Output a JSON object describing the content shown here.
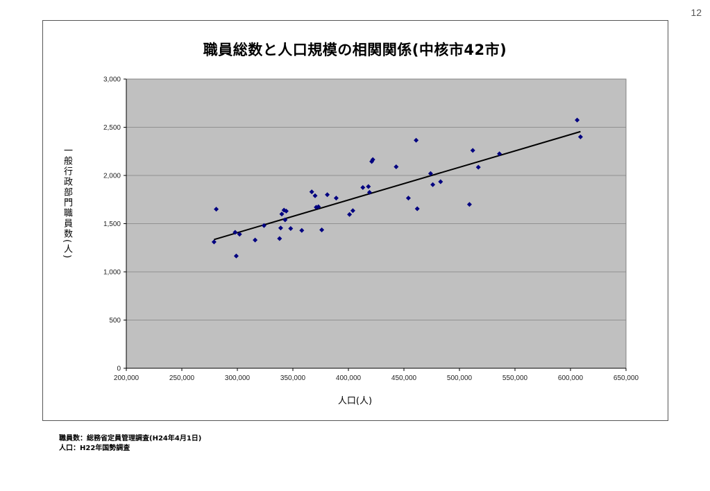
{
  "page_number": "12",
  "sources": {
    "staff": "職員数：総務省定員管理調査(H24年4月1日)",
    "population": "人口：H22年国勢調査"
  },
  "colors": {
    "plot_bg": "#c0c0c0",
    "point": "#000080",
    "trend": "#000000",
    "grid": "#808080"
  },
  "chart_data": {
    "type": "scatter",
    "title": "職員総数と人口規模の相関関係(中核市42市)",
    "xlabel": "人口(人)",
    "ylabel": "一般行政部門職員数(人)",
    "xlim": [
      200000,
      650000
    ],
    "ylim": [
      0,
      3000
    ],
    "x_ticks": [
      200000,
      250000,
      300000,
      350000,
      400000,
      450000,
      500000,
      550000,
      600000,
      650000
    ],
    "x_tick_labels": [
      "200,000",
      "250,000",
      "300,000",
      "350,000",
      "400,000",
      "450,000",
      "500,000",
      "550,000",
      "600,000",
      "650,000"
    ],
    "y_ticks": [
      0,
      500,
      1000,
      1500,
      2000,
      2500,
      3000
    ],
    "y_tick_labels": [
      "0",
      "500",
      "1,000",
      "1,500",
      "2,000",
      "2,500",
      "3,000"
    ],
    "grid": "horizontal",
    "legend": "none",
    "points": [
      [
        279000,
        1310
      ],
      [
        281000,
        1650
      ],
      [
        298000,
        1410
      ],
      [
        299000,
        1165
      ],
      [
        302000,
        1390
      ],
      [
        316000,
        1330
      ],
      [
        324000,
        1480
      ],
      [
        338000,
        1345
      ],
      [
        339000,
        1455
      ],
      [
        340000,
        1600
      ],
      [
        342000,
        1640
      ],
      [
        343000,
        1540
      ],
      [
        344000,
        1630
      ],
      [
        348000,
        1450
      ],
      [
        358000,
        1430
      ],
      [
        367000,
        1830
      ],
      [
        370000,
        1790
      ],
      [
        371000,
        1670
      ],
      [
        373000,
        1675
      ],
      [
        376000,
        1435
      ],
      [
        381000,
        1800
      ],
      [
        389000,
        1765
      ],
      [
        401000,
        1595
      ],
      [
        404000,
        1635
      ],
      [
        413000,
        1875
      ],
      [
        418000,
        1885
      ],
      [
        419000,
        1825
      ],
      [
        421000,
        2145
      ],
      [
        422000,
        2165
      ],
      [
        443000,
        2090
      ],
      [
        454000,
        1765
      ],
      [
        461000,
        2365
      ],
      [
        462000,
        1655
      ],
      [
        474000,
        2020
      ],
      [
        476000,
        1905
      ],
      [
        483000,
        1935
      ],
      [
        509000,
        1700
      ],
      [
        512000,
        2260
      ],
      [
        517000,
        2085
      ],
      [
        536000,
        2225
      ],
      [
        606000,
        2575
      ],
      [
        609000,
        2400
      ]
    ],
    "trendline": {
      "type": "linear",
      "x": [
        279000,
        609000
      ],
      "y": [
        1335,
        2455
      ]
    }
  }
}
